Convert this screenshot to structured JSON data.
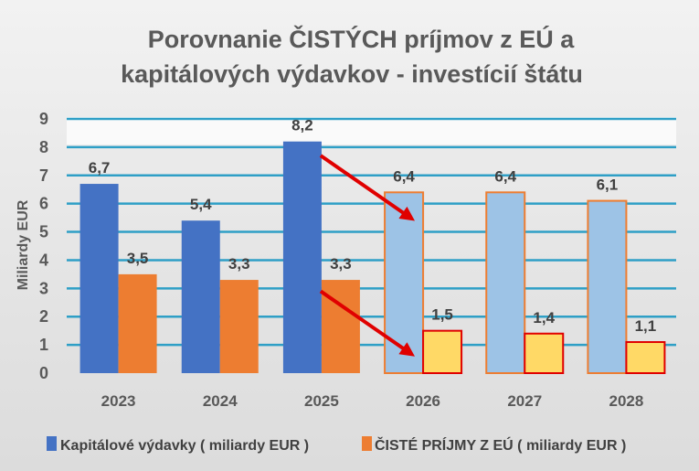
{
  "chart_data": {
    "type": "bar",
    "title": [
      "Porovnanie ČISTÝCH príjmov z EÚ a",
      "kapitálových výdavkov - investícií štátu"
    ],
    "xlabel": "",
    "ylabel": "Miliardy EUR",
    "ylim": [
      0,
      9
    ],
    "yticks": [
      "0",
      "1",
      "2",
      "3",
      "4",
      "5",
      "6",
      "7",
      "8",
      "9"
    ],
    "grid": true,
    "legend_position": "bottom",
    "categories": [
      "2023",
      "2024",
      "2025",
      "2026",
      "2027",
      "2028"
    ],
    "projected_categories": [
      "2026",
      "2027",
      "2028"
    ],
    "series": [
      {
        "name": "Kapitálové výdavky ( miliardy EUR )",
        "values": [
          6.7,
          5.4,
          8.2,
          6.4,
          6.4,
          6.1
        ],
        "labels": [
          "6,7",
          "5,4",
          "8,2",
          "6,4",
          "6,4",
          "6,1"
        ],
        "color": "#4472C4",
        "projected_color": "#9DC3E6",
        "projected_border": "#ED7D31"
      },
      {
        "name": "ČISTÉ PRÍJMY Z EÚ  ( miliardy EUR )",
        "values": [
          3.5,
          3.3,
          3.3,
          1.5,
          1.4,
          1.1
        ],
        "labels": [
          "3,5",
          "3,3",
          "3,3",
          "1,5",
          "1,4",
          "1,1"
        ],
        "color": "#ED7D31",
        "projected_color": "#FFD966",
        "projected_border": "#E00000"
      }
    ],
    "annotations": [
      {
        "type": "arrow",
        "color": "#E00000",
        "from": [
          "2025",
          7.7
        ],
        "to": [
          "2026",
          5.5
        ]
      },
      {
        "type": "arrow",
        "color": "#E00000",
        "from": [
          "2025",
          2.9
        ],
        "to": [
          "2026",
          0.7
        ]
      }
    ],
    "gridline_color": "#2E9FC6"
  }
}
